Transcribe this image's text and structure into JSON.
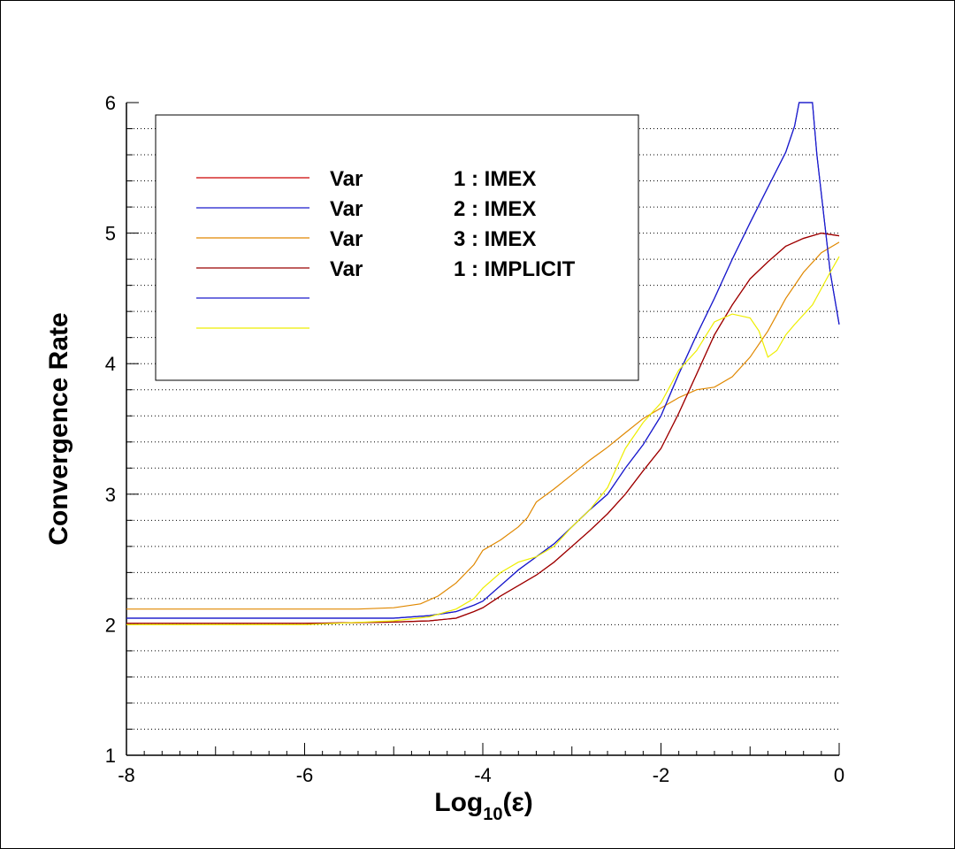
{
  "chart_data": {
    "type": "line",
    "xlabel": {
      "main": "Log",
      "sub": "10",
      "suffix": "(ε)"
    },
    "ylabel": "Convergence Rate",
    "xlim": [
      -8,
      0
    ],
    "ylim": [
      1,
      6
    ],
    "x_ticks": [
      -8,
      -6,
      -4,
      -2,
      0
    ],
    "y_ticks": [
      1,
      2,
      3,
      4,
      5,
      6
    ],
    "grid": "horizontal-dotted",
    "legend": "top-left",
    "series": [
      {
        "name": "Var 1 : IMEX",
        "label_parts": [
          "Var",
          "1 : IMEX"
        ],
        "color": "#cc0000",
        "x": [
          -8,
          -6,
          -5,
          -4.6,
          -4.3,
          -4.1,
          -4,
          -3.8,
          -3.6,
          -3.4,
          -3.2,
          -3,
          -2.8,
          -2.6,
          -2.4,
          -2.2,
          -2,
          -1.8,
          -1.6,
          -1.4,
          -1.2,
          -1,
          -0.8,
          -0.6,
          -0.4,
          -0.2,
          0
        ],
        "y": [
          2.01,
          2.01,
          2.02,
          2.03,
          2.05,
          2.1,
          2.13,
          2.22,
          2.3,
          2.38,
          2.48,
          2.6,
          2.72,
          2.85,
          3.0,
          3.18,
          3.35,
          3.62,
          3.92,
          4.22,
          4.45,
          4.65,
          4.78,
          4.9,
          4.96,
          5.0,
          4.98
        ]
      },
      {
        "name": "Var 2 : IMEX",
        "label_parts": [
          "Var",
          "2 : IMEX"
        ],
        "color": "#1a1acc",
        "x": [
          -8,
          -6,
          -5,
          -4.6,
          -4.3,
          -4.1,
          -4,
          -3.8,
          -3.6,
          -3.4,
          -3.2,
          -3,
          -2.8,
          -2.6,
          -2.4,
          -2.2,
          -2,
          -1.8,
          -1.6,
          -1.4,
          -1.2,
          -1,
          -0.8,
          -0.6,
          -0.5,
          -0.45,
          -0.3,
          -0.25,
          -0.15,
          -0.1,
          0
        ],
        "y": [
          2.05,
          2.05,
          2.05,
          2.07,
          2.1,
          2.15,
          2.18,
          2.3,
          2.42,
          2.52,
          2.62,
          2.75,
          2.88,
          3.0,
          3.2,
          3.38,
          3.6,
          3.92,
          4.22,
          4.5,
          4.8,
          5.08,
          5.35,
          5.62,
          5.82,
          6.02,
          6.02,
          5.6,
          5.0,
          4.7,
          4.3
        ]
      },
      {
        "name": "Var 3 : IMEX",
        "label_parts": [
          "Var",
          "3 : IMEX"
        ],
        "color": "#e08800",
        "x": [
          -8,
          -6,
          -5.4,
          -5,
          -4.7,
          -4.5,
          -4.3,
          -4.1,
          -4,
          -3.8,
          -3.6,
          -3.5,
          -3.4,
          -3.2,
          -3,
          -2.8,
          -2.6,
          -2.4,
          -2.2,
          -2,
          -1.8,
          -1.6,
          -1.4,
          -1.2,
          -1,
          -0.8,
          -0.6,
          -0.4,
          -0.2,
          0
        ],
        "y": [
          2.12,
          2.12,
          2.12,
          2.13,
          2.16,
          2.22,
          2.32,
          2.46,
          2.57,
          2.65,
          2.75,
          2.82,
          2.94,
          3.04,
          3.15,
          3.26,
          3.36,
          3.47,
          3.58,
          3.66,
          3.74,
          3.8,
          3.82,
          3.9,
          4.05,
          4.25,
          4.5,
          4.7,
          4.85,
          4.93
        ]
      },
      {
        "name": "Var 1 : IMPLICIT",
        "label_parts": [
          "Var",
          "1 : IMPLICIT"
        ],
        "color": "#990000",
        "x": [
          -8,
          -6,
          -5,
          -4.6,
          -4.3,
          -4.1,
          -4,
          -3.8,
          -3.6,
          -3.4,
          -3.2,
          -3,
          -2.8,
          -2.6,
          -2.4,
          -2.2,
          -2,
          -1.8,
          -1.6,
          -1.4,
          -1.2,
          -1,
          -0.8,
          -0.6,
          -0.4,
          -0.2,
          0
        ],
        "y": [
          2.01,
          2.01,
          2.02,
          2.03,
          2.05,
          2.1,
          2.13,
          2.22,
          2.3,
          2.38,
          2.48,
          2.6,
          2.72,
          2.85,
          3.0,
          3.18,
          3.35,
          3.62,
          3.92,
          4.22,
          4.45,
          4.65,
          4.78,
          4.9,
          4.96,
          5.0,
          4.98
        ]
      },
      {
        "name": "",
        "label_parts": [
          "",
          ""
        ],
        "color": "#1a1acc",
        "x": [
          -8,
          -6,
          -5,
          -4.6,
          -4.3,
          -4.1,
          -4,
          -3.8,
          -3.6,
          -3.4,
          -3.2,
          -3,
          -2.8,
          -2.6,
          -2.4,
          -2.2,
          -2,
          -1.8,
          -1.6,
          -1.4,
          -1.2,
          -1,
          -0.8,
          -0.6,
          -0.5,
          -0.45,
          -0.3,
          -0.25,
          -0.15,
          -0.1,
          0
        ],
        "y": [
          2.05,
          2.05,
          2.05,
          2.07,
          2.1,
          2.15,
          2.18,
          2.3,
          2.42,
          2.52,
          2.62,
          2.75,
          2.88,
          3.0,
          3.2,
          3.38,
          3.6,
          3.92,
          4.22,
          4.5,
          4.8,
          5.08,
          5.35,
          5.62,
          5.82,
          6.02,
          6.02,
          5.6,
          5.0,
          4.7,
          4.3
        ]
      },
      {
        "name": "",
        "label_parts": [
          "",
          ""
        ],
        "color": "#eeee00",
        "x": [
          -8,
          -6,
          -5,
          -4.6,
          -4.3,
          -4.1,
          -4,
          -3.8,
          -3.6,
          -3.4,
          -3.2,
          -3,
          -2.8,
          -2.6,
          -2.5,
          -2.4,
          -2.2,
          -2,
          -1.8,
          -1.6,
          -1.4,
          -1.2,
          -1,
          -0.9,
          -0.8,
          -0.7,
          -0.6,
          -0.5,
          -0.3,
          -0.1,
          0
        ],
        "y": [
          2.0,
          2.0,
          2.03,
          2.06,
          2.12,
          2.2,
          2.28,
          2.4,
          2.48,
          2.52,
          2.6,
          2.75,
          2.88,
          3.05,
          3.2,
          3.35,
          3.55,
          3.7,
          3.95,
          4.1,
          4.32,
          4.38,
          4.35,
          4.25,
          4.05,
          4.1,
          4.22,
          4.3,
          4.45,
          4.7,
          4.82
        ]
      }
    ]
  }
}
